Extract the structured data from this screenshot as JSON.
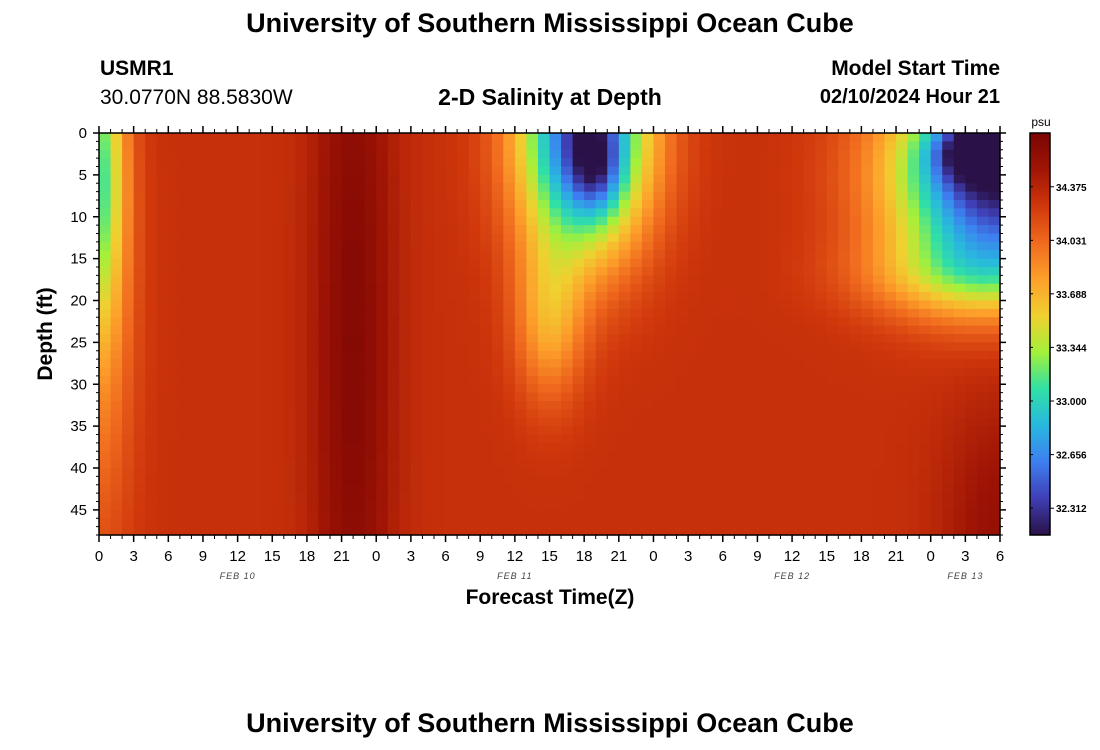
{
  "header": {
    "title": "University of Southern Mississippi Ocean Cube",
    "station": "USMR1",
    "coordinates": "30.0770N  88.5830W",
    "plot_title": "2-D Salinity at Depth",
    "model_start_label": "Model Start Time",
    "model_start_value": "02/10/2024 Hour 21"
  },
  "footer": {
    "title": "University of Southern Mississippi Ocean Cube"
  },
  "chart_data": {
    "type": "heatmap",
    "title": "2-D Salinity at Depth",
    "xlabel": "Forecast Time(Z)",
    "ylabel": "Depth (ft)",
    "x_range_hours": [
      0,
      78
    ],
    "x_ticks": [
      {
        "hour": 0,
        "label": "0"
      },
      {
        "hour": 3,
        "label": "3"
      },
      {
        "hour": 6,
        "label": "6"
      },
      {
        "hour": 9,
        "label": "9"
      },
      {
        "hour": 12,
        "label": "12"
      },
      {
        "hour": 15,
        "label": "15"
      },
      {
        "hour": 18,
        "label": "18"
      },
      {
        "hour": 21,
        "label": "21"
      },
      {
        "hour": 24,
        "label": "0"
      },
      {
        "hour": 27,
        "label": "3"
      },
      {
        "hour": 30,
        "label": "6"
      },
      {
        "hour": 33,
        "label": "9"
      },
      {
        "hour": 36,
        "label": "12"
      },
      {
        "hour": 39,
        "label": "15"
      },
      {
        "hour": 42,
        "label": "18"
      },
      {
        "hour": 45,
        "label": "21"
      },
      {
        "hour": 48,
        "label": "0"
      },
      {
        "hour": 51,
        "label": "3"
      },
      {
        "hour": 54,
        "label": "6"
      },
      {
        "hour": 57,
        "label": "9"
      },
      {
        "hour": 60,
        "label": "12"
      },
      {
        "hour": 63,
        "label": "15"
      },
      {
        "hour": 66,
        "label": "18"
      },
      {
        "hour": 69,
        "label": "21"
      },
      {
        "hour": 72,
        "label": "0"
      },
      {
        "hour": 75,
        "label": "3"
      },
      {
        "hour": 78,
        "label": "6"
      }
    ],
    "date_labels": [
      {
        "hour": 12,
        "label": "FEB 10"
      },
      {
        "hour": 36,
        "label": "FEB 11"
      },
      {
        "hour": 60,
        "label": "FEB 12"
      },
      {
        "hour": 75,
        "label": "FEB 13"
      }
    ],
    "y_range_ft": [
      0,
      48
    ],
    "y_ticks": [
      0,
      5,
      10,
      15,
      20,
      25,
      30,
      35,
      40,
      45
    ],
    "colorbar": {
      "unit": "psu",
      "range": [
        32.14,
        34.72
      ],
      "tick_values": [
        32.312,
        32.656,
        33.0,
        33.344,
        33.688,
        34.031,
        34.375
      ],
      "tick_labels": [
        "32.312",
        "32.656",
        "33.000",
        "33.344",
        "33.688",
        "34.031",
        "34.375"
      ],
      "colors": [
        "#2a1248",
        "#3f3eb5",
        "#3d7ff0",
        "#28b8de",
        "#30e0a6",
        "#a4f03a",
        "#f0d030",
        "#fda02b",
        "#f06a1e",
        "#d0380c",
        "#a01505",
        "#7a0403"
      ]
    },
    "background_salinity": 34.3,
    "features": [
      {
        "name": "dark-core",
        "hour": 22,
        "depth_ft": 25,
        "width_h": 3.5,
        "depth_extent_ft": 60,
        "delta": 0.35
      },
      {
        "name": "bottom-right-high",
        "hour": 78,
        "depth_ft": 48,
        "width_h": 5,
        "depth_extent_ft": 16,
        "delta": 0.25
      },
      {
        "name": "left-surface-fresh",
        "hour": 0,
        "depth_ft": 4,
        "width_h": 2.2,
        "depth_extent_ft": 18,
        "delta": -0.9
      },
      {
        "name": "left-upper-fresh",
        "hour": 0,
        "depth_ft": 20,
        "width_h": 3,
        "depth_extent_ft": 30,
        "delta": -0.4
      },
      {
        "name": "mid-surface-fresh",
        "hour": 42,
        "depth_ft": 0,
        "width_h": 5.5,
        "depth_extent_ft": 14,
        "delta": -2.0
      },
      {
        "name": "mid-funnel",
        "hour": 39,
        "depth_ft": 22,
        "width_h": 3,
        "depth_extent_ft": 10,
        "delta": -0.55
      },
      {
        "name": "mid-core",
        "hour": 43,
        "depth_ft": 4,
        "width_h": 2,
        "depth_extent_ft": 5,
        "delta": -0.5
      },
      {
        "name": "right-surface-fresh",
        "hour": 78,
        "depth_ft": 5,
        "width_h": 9,
        "depth_extent_ft": 12,
        "delta": -2.2
      },
      {
        "name": "right-layer",
        "hour": 75,
        "depth_ft": 17,
        "width_h": 9,
        "depth_extent_ft": 5,
        "delta": -0.5
      },
      {
        "name": "right-core",
        "hour": 75,
        "depth_ft": 2,
        "width_h": 3,
        "depth_extent_ft": 3.5,
        "delta": -0.65
      }
    ]
  }
}
